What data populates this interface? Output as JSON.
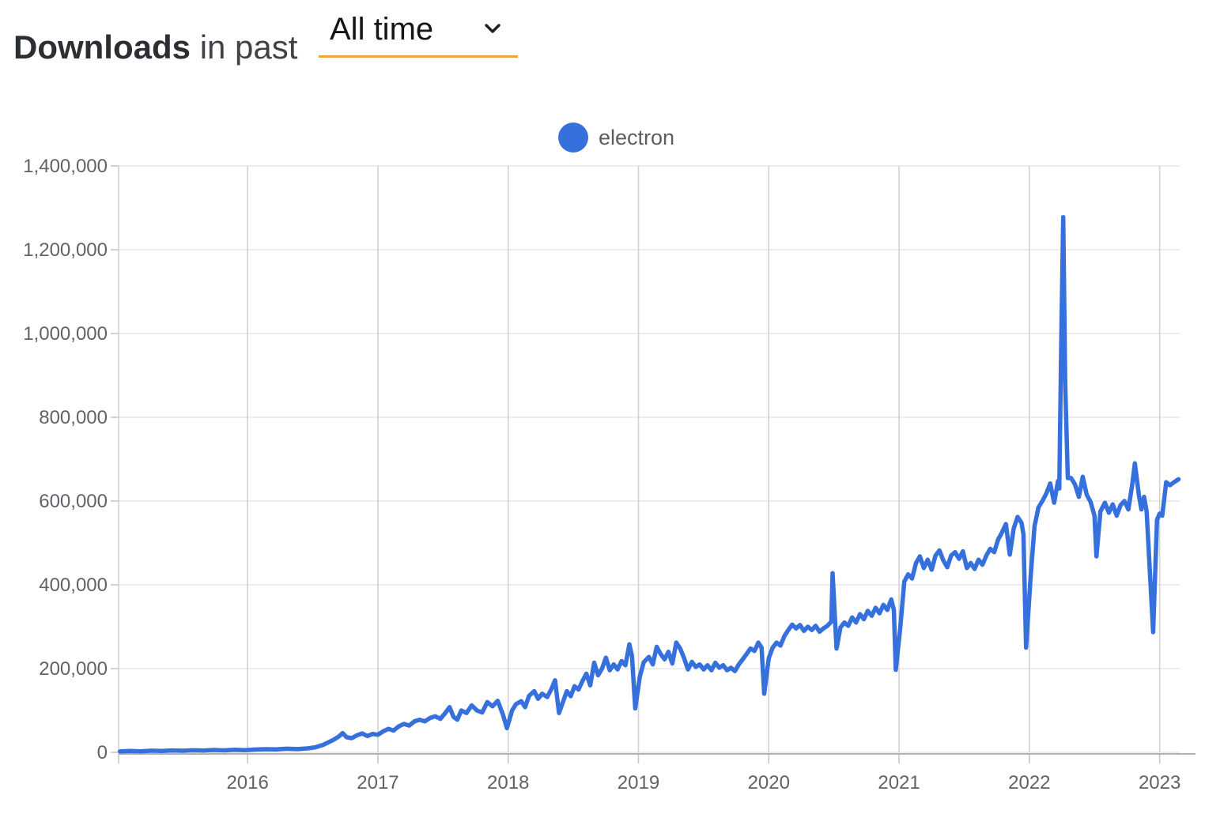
{
  "header": {
    "title_bold": "Downloads",
    "title_rest": "in past",
    "range_selector": {
      "value": "All time",
      "underline_color": "#f0a23c"
    }
  },
  "legend": {
    "items": [
      {
        "label": "electron",
        "color": "#3570dd"
      }
    ]
  },
  "chart_data": {
    "type": "line",
    "title": "",
    "xlabel": "",
    "ylabel": "",
    "grid": true,
    "legend_position": "top-center",
    "xlim": [
      2015.01,
      2023.16
    ],
    "ylim": [
      0,
      1400000
    ],
    "x_ticks": [
      2016,
      2017,
      2018,
      2019,
      2020,
      2021,
      2022,
      2023
    ],
    "y_ticks": [
      0,
      200000,
      400000,
      600000,
      800000,
      1000000,
      1200000,
      1400000
    ],
    "colors": {
      "h_grid": "#e7e7e7",
      "v_grid": "#d2d2d2",
      "tick": "#c6c6c6",
      "axis": "#b2b2b2",
      "tick_label": "#5f6368"
    },
    "series": [
      {
        "name": "electron",
        "color": "#3570dd",
        "points": [
          [
            2015.02,
            2000
          ],
          [
            2015.1,
            3200
          ],
          [
            2015.18,
            2500
          ],
          [
            2015.26,
            4000
          ],
          [
            2015.34,
            3200
          ],
          [
            2015.42,
            4500
          ],
          [
            2015.5,
            3800
          ],
          [
            2015.58,
            5000
          ],
          [
            2015.66,
            4300
          ],
          [
            2015.74,
            5600
          ],
          [
            2015.82,
            4800
          ],
          [
            2015.9,
            6000
          ],
          [
            2015.98,
            5200
          ],
          [
            2016.06,
            6800
          ],
          [
            2016.14,
            7500
          ],
          [
            2016.22,
            6900
          ],
          [
            2016.3,
            8600
          ],
          [
            2016.38,
            7800
          ],
          [
            2016.46,
            9500
          ],
          [
            2016.52,
            12000
          ],
          [
            2016.58,
            18000
          ],
          [
            2016.62,
            24000
          ],
          [
            2016.66,
            30000
          ],
          [
            2016.7,
            38000
          ],
          [
            2016.73,
            46000
          ],
          [
            2016.76,
            36000
          ],
          [
            2016.8,
            34000
          ],
          [
            2016.84,
            41000
          ],
          [
            2016.88,
            45000
          ],
          [
            2016.92,
            39000
          ],
          [
            2016.96,
            44000
          ],
          [
            2017.0,
            42000
          ],
          [
            2017.04,
            50000
          ],
          [
            2017.08,
            56000
          ],
          [
            2017.12,
            52000
          ],
          [
            2017.16,
            62000
          ],
          [
            2017.2,
            68000
          ],
          [
            2017.24,
            64000
          ],
          [
            2017.28,
            74000
          ],
          [
            2017.32,
            78000
          ],
          [
            2017.36,
            74000
          ],
          [
            2017.4,
            82000
          ],
          [
            2017.44,
            86000
          ],
          [
            2017.48,
            80000
          ],
          [
            2017.52,
            95000
          ],
          [
            2017.55,
            108000
          ],
          [
            2017.58,
            85000
          ],
          [
            2017.61,
            78000
          ],
          [
            2017.64,
            100000
          ],
          [
            2017.68,
            94000
          ],
          [
            2017.72,
            112000
          ],
          [
            2017.76,
            100000
          ],
          [
            2017.8,
            95000
          ],
          [
            2017.84,
            120000
          ],
          [
            2017.88,
            110000
          ],
          [
            2017.92,
            123000
          ],
          [
            2017.96,
            90000
          ],
          [
            2017.99,
            58000
          ],
          [
            2018.03,
            100000
          ],
          [
            2018.06,
            115000
          ],
          [
            2018.1,
            122000
          ],
          [
            2018.13,
            108000
          ],
          [
            2018.16,
            135000
          ],
          [
            2018.2,
            146000
          ],
          [
            2018.23,
            128000
          ],
          [
            2018.26,
            140000
          ],
          [
            2018.3,
            132000
          ],
          [
            2018.33,
            150000
          ],
          [
            2018.36,
            172000
          ],
          [
            2018.39,
            94000
          ],
          [
            2018.42,
            120000
          ],
          [
            2018.45,
            146000
          ],
          [
            2018.48,
            134000
          ],
          [
            2018.51,
            158000
          ],
          [
            2018.54,
            150000
          ],
          [
            2018.57,
            170000
          ],
          [
            2018.6,
            188000
          ],
          [
            2018.63,
            160000
          ],
          [
            2018.66,
            214000
          ],
          [
            2018.69,
            184000
          ],
          [
            2018.72,
            200000
          ],
          [
            2018.75,
            226000
          ],
          [
            2018.78,
            196000
          ],
          [
            2018.81,
            210000
          ],
          [
            2018.84,
            198000
          ],
          [
            2018.87,
            218000
          ],
          [
            2018.9,
            208000
          ],
          [
            2018.93,
            258000
          ],
          [
            2018.95,
            230000
          ],
          [
            2018.975,
            105000
          ],
          [
            2019.01,
            180000
          ],
          [
            2019.04,
            215000
          ],
          [
            2019.08,
            228000
          ],
          [
            2019.11,
            210000
          ],
          [
            2019.14,
            252000
          ],
          [
            2019.17,
            235000
          ],
          [
            2019.2,
            222000
          ],
          [
            2019.23,
            240000
          ],
          [
            2019.26,
            212000
          ],
          [
            2019.29,
            262000
          ],
          [
            2019.32,
            248000
          ],
          [
            2019.35,
            225000
          ],
          [
            2019.38,
            198000
          ],
          [
            2019.41,
            216000
          ],
          [
            2019.44,
            204000
          ],
          [
            2019.47,
            210000
          ],
          [
            2019.5,
            198000
          ],
          [
            2019.53,
            208000
          ],
          [
            2019.56,
            196000
          ],
          [
            2019.59,
            214000
          ],
          [
            2019.62,
            202000
          ],
          [
            2019.65,
            208000
          ],
          [
            2019.68,
            196000
          ],
          [
            2019.71,
            202000
          ],
          [
            2019.74,
            194000
          ],
          [
            2019.77,
            210000
          ],
          [
            2019.8,
            222000
          ],
          [
            2019.83,
            235000
          ],
          [
            2019.86,
            248000
          ],
          [
            2019.89,
            242000
          ],
          [
            2019.92,
            262000
          ],
          [
            2019.945,
            250000
          ],
          [
            2019.965,
            140000
          ],
          [
            2020.0,
            225000
          ],
          [
            2020.03,
            250000
          ],
          [
            2020.06,
            262000
          ],
          [
            2020.09,
            255000
          ],
          [
            2020.12,
            278000
          ],
          [
            2020.15,
            292000
          ],
          [
            2020.18,
            305000
          ],
          [
            2020.21,
            296000
          ],
          [
            2020.24,
            304000
          ],
          [
            2020.27,
            290000
          ],
          [
            2020.3,
            300000
          ],
          [
            2020.33,
            292000
          ],
          [
            2020.36,
            302000
          ],
          [
            2020.39,
            288000
          ],
          [
            2020.42,
            296000
          ],
          [
            2020.45,
            302000
          ],
          [
            2020.48,
            312000
          ],
          [
            2020.49,
            428000
          ],
          [
            2020.52,
            248000
          ],
          [
            2020.55,
            298000
          ],
          [
            2020.58,
            310000
          ],
          [
            2020.61,
            302000
          ],
          [
            2020.64,
            322000
          ],
          [
            2020.67,
            310000
          ],
          [
            2020.7,
            330000
          ],
          [
            2020.73,
            318000
          ],
          [
            2020.76,
            338000
          ],
          [
            2020.79,
            326000
          ],
          [
            2020.82,
            345000
          ],
          [
            2020.85,
            332000
          ],
          [
            2020.88,
            352000
          ],
          [
            2020.91,
            340000
          ],
          [
            2020.94,
            365000
          ],
          [
            2020.96,
            340000
          ],
          [
            2020.975,
            197000
          ],
          [
            2021.01,
            300000
          ],
          [
            2021.04,
            408000
          ],
          [
            2021.07,
            425000
          ],
          [
            2021.1,
            415000
          ],
          [
            2021.13,
            452000
          ],
          [
            2021.16,
            468000
          ],
          [
            2021.19,
            440000
          ],
          [
            2021.22,
            460000
          ],
          [
            2021.25,
            436000
          ],
          [
            2021.28,
            470000
          ],
          [
            2021.31,
            482000
          ],
          [
            2021.34,
            458000
          ],
          [
            2021.37,
            442000
          ],
          [
            2021.4,
            470000
          ],
          [
            2021.43,
            478000
          ],
          [
            2021.46,
            462000
          ],
          [
            2021.49,
            480000
          ],
          [
            2021.52,
            440000
          ],
          [
            2021.55,
            452000
          ],
          [
            2021.58,
            438000
          ],
          [
            2021.61,
            460000
          ],
          [
            2021.64,
            448000
          ],
          [
            2021.67,
            470000
          ],
          [
            2021.7,
            486000
          ],
          [
            2021.73,
            478000
          ],
          [
            2021.76,
            508000
          ],
          [
            2021.79,
            525000
          ],
          [
            2021.82,
            545000
          ],
          [
            2021.85,
            472000
          ],
          [
            2021.88,
            535000
          ],
          [
            2021.91,
            562000
          ],
          [
            2021.94,
            548000
          ],
          [
            2021.955,
            520000
          ],
          [
            2021.975,
            250000
          ],
          [
            2022.01,
            420000
          ],
          [
            2022.04,
            540000
          ],
          [
            2022.07,
            585000
          ],
          [
            2022.1,
            600000
          ],
          [
            2022.13,
            618000
          ],
          [
            2022.16,
            642000
          ],
          [
            2022.19,
            596000
          ],
          [
            2022.22,
            648000
          ],
          [
            2022.23,
            630000
          ],
          [
            2022.245,
            980000
          ],
          [
            2022.26,
            1278000
          ],
          [
            2022.275,
            880000
          ],
          [
            2022.295,
            655000
          ],
          [
            2022.32,
            655000
          ],
          [
            2022.35,
            640000
          ],
          [
            2022.38,
            610000
          ],
          [
            2022.41,
            658000
          ],
          [
            2022.44,
            615000
          ],
          [
            2022.47,
            598000
          ],
          [
            2022.5,
            565000
          ],
          [
            2022.515,
            468000
          ],
          [
            2022.545,
            575000
          ],
          [
            2022.58,
            596000
          ],
          [
            2022.61,
            572000
          ],
          [
            2022.64,
            592000
          ],
          [
            2022.67,
            565000
          ],
          [
            2022.7,
            590000
          ],
          [
            2022.73,
            600000
          ],
          [
            2022.76,
            580000
          ],
          [
            2022.79,
            640000
          ],
          [
            2022.81,
            690000
          ],
          [
            2022.84,
            615000
          ],
          [
            2022.86,
            580000
          ],
          [
            2022.88,
            610000
          ],
          [
            2022.9,
            575000
          ],
          [
            2022.95,
            287000
          ],
          [
            2022.98,
            555000
          ],
          [
            2023.0,
            570000
          ],
          [
            2023.02,
            565000
          ],
          [
            2023.05,
            645000
          ],
          [
            2023.08,
            638000
          ],
          [
            2023.11,
            645000
          ],
          [
            2023.145,
            652000
          ]
        ]
      }
    ]
  }
}
